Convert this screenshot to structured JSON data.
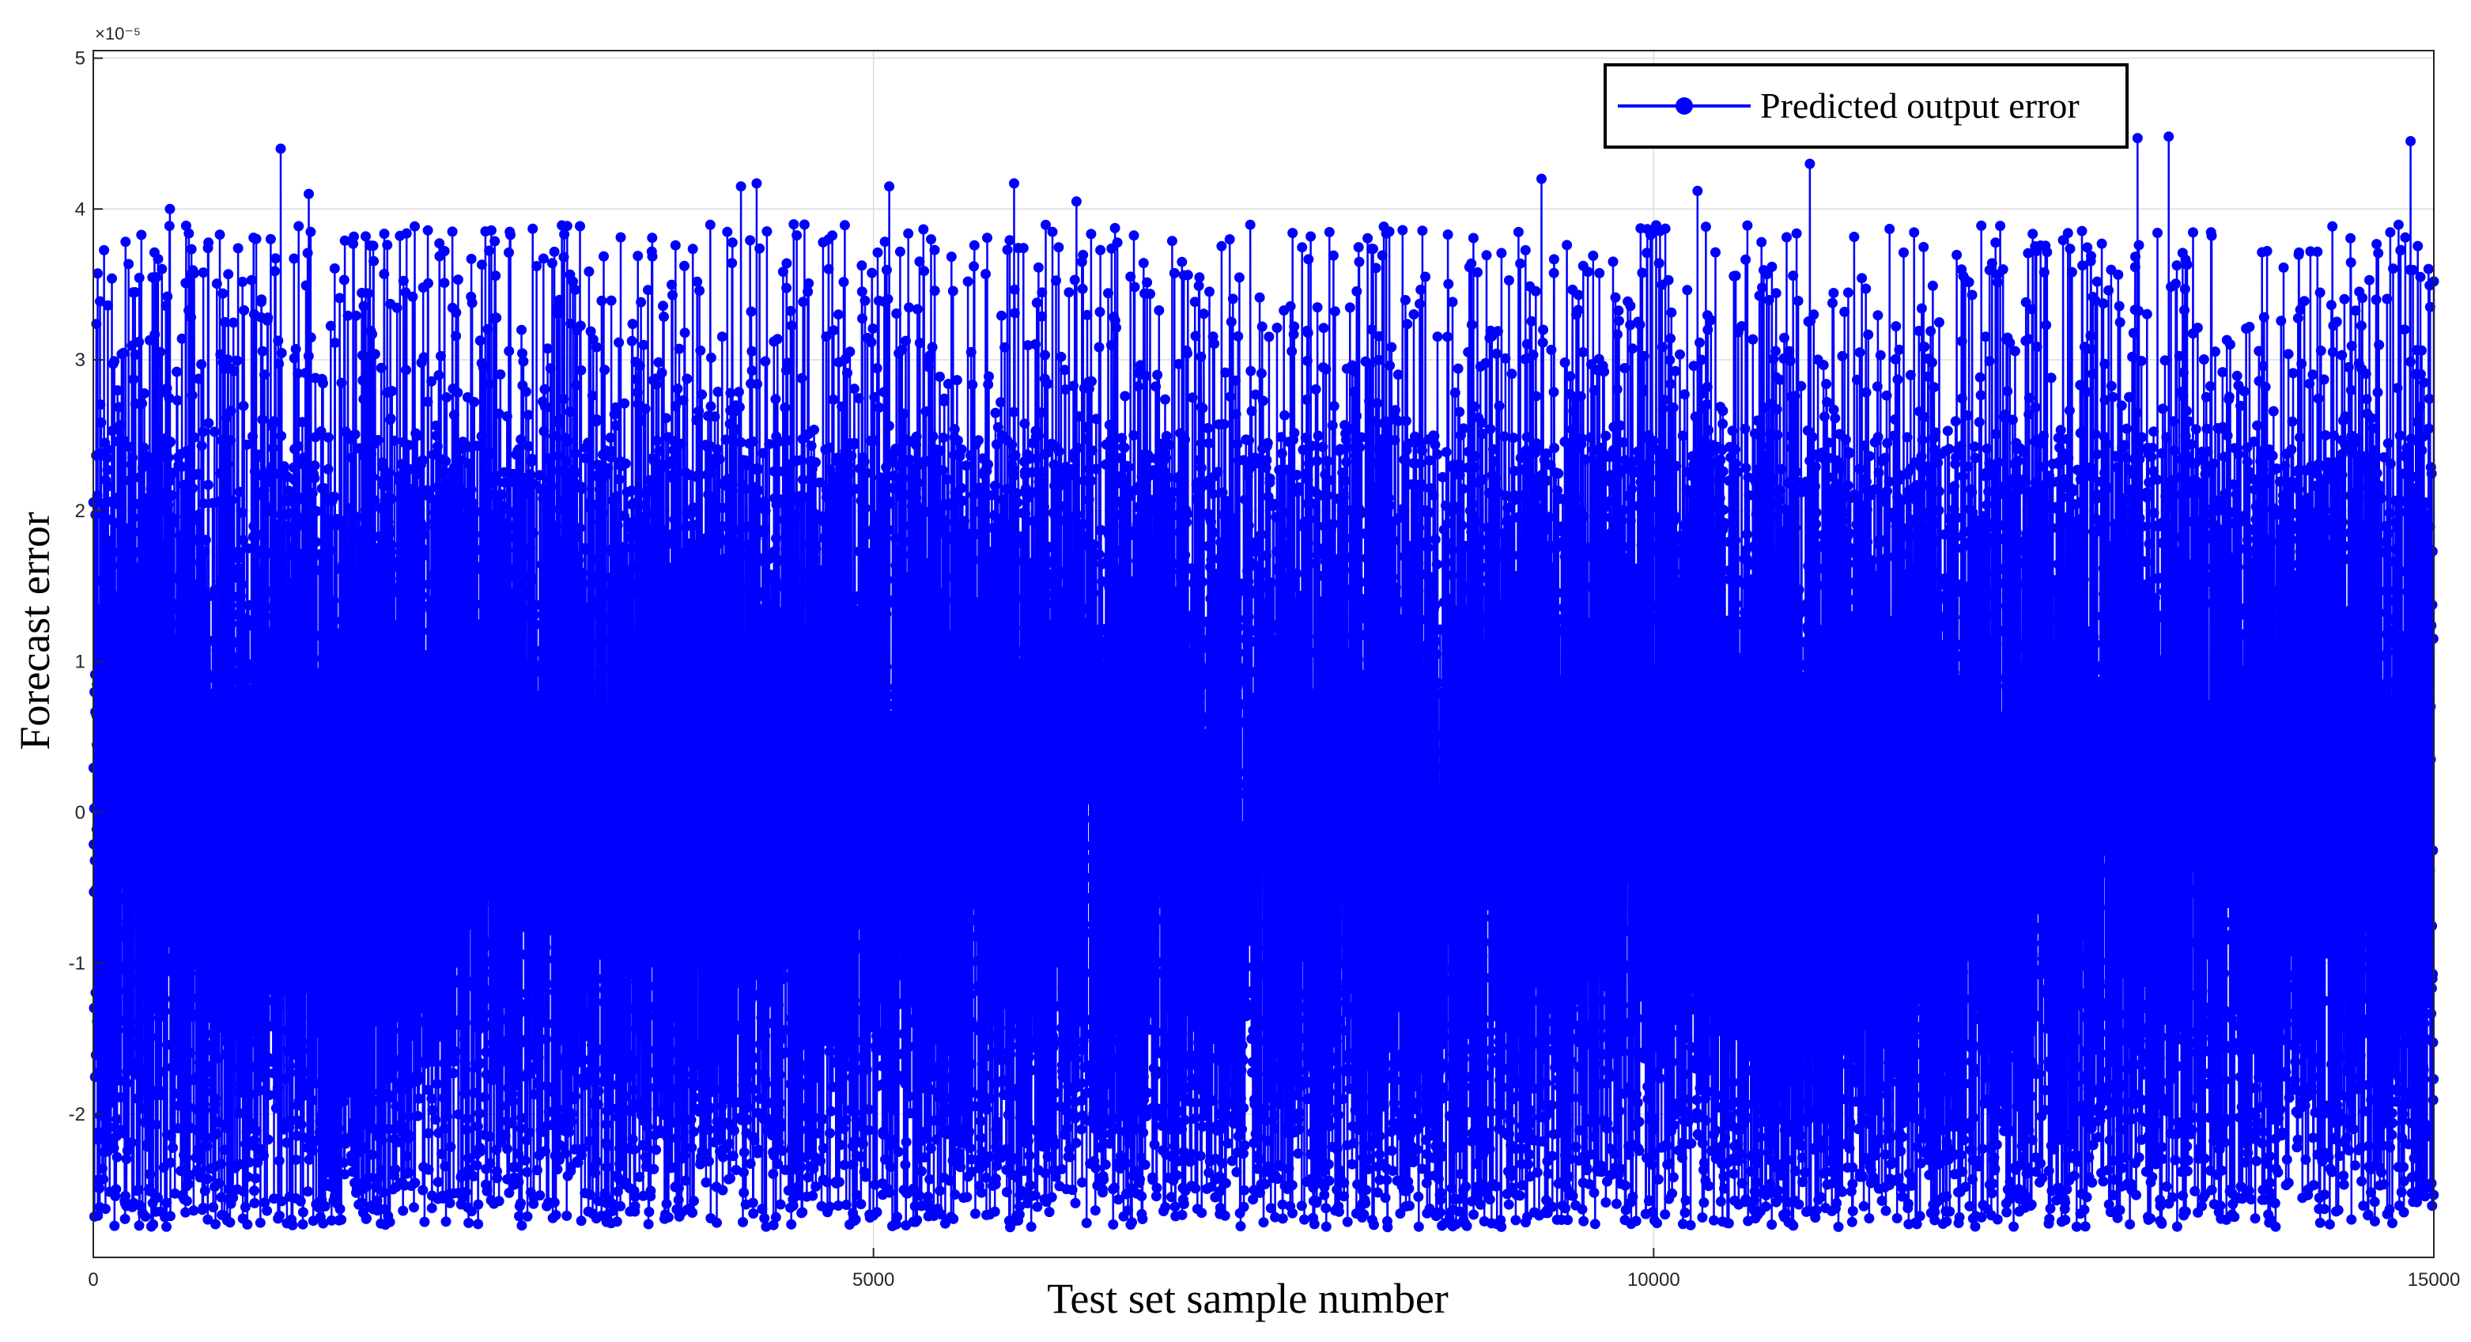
{
  "chart_data": {
    "type": "line",
    "xlabel": "Test set sample number",
    "ylabel": "Forecast error",
    "y_exponent_label": "×10⁻⁵",
    "y_scale_factor": 1e-05,
    "xlim": [
      0,
      15000
    ],
    "ylim": [
      -2.95,
      5.05
    ],
    "xticks": [
      0,
      5000,
      10000,
      15000
    ],
    "xtick_labels": [
      "0",
      "5000",
      "10000",
      "15000"
    ],
    "yticks": [
      -2,
      -1,
      0,
      1,
      2,
      3,
      4,
      5
    ],
    "ytick_labels": [
      "-2",
      "-1",
      "0",
      "1",
      "2",
      "3",
      "4",
      "5"
    ],
    "grid": true,
    "legend_position": "top-right",
    "marker": "circle",
    "color": "#0000ff",
    "series": [
      {
        "name": "Predicted output error",
        "n_points": 15000,
        "value_range": [
          -2.75,
          4.48
        ],
        "typical_band": [
          -2.2,
          2.5
        ],
        "notable_peaks": [
          {
            "x": 490,
            "y": 4.0
          },
          {
            "x": 1200,
            "y": 4.4
          },
          {
            "x": 1380,
            "y": 4.1
          },
          {
            "x": 2300,
            "y": 3.85
          },
          {
            "x": 4150,
            "y": 4.15
          },
          {
            "x": 4250,
            "y": 4.17
          },
          {
            "x": 5100,
            "y": 4.15
          },
          {
            "x": 5900,
            "y": 4.17
          },
          {
            "x": 6300,
            "y": 4.05
          },
          {
            "x": 9280,
            "y": 4.2
          },
          {
            "x": 10280,
            "y": 4.12
          },
          {
            "x": 11000,
            "y": 4.3
          },
          {
            "x": 13100,
            "y": 4.47
          },
          {
            "x": 13300,
            "y": 4.48
          },
          {
            "x": 14850,
            "y": 4.45
          }
        ]
      }
    ]
  }
}
